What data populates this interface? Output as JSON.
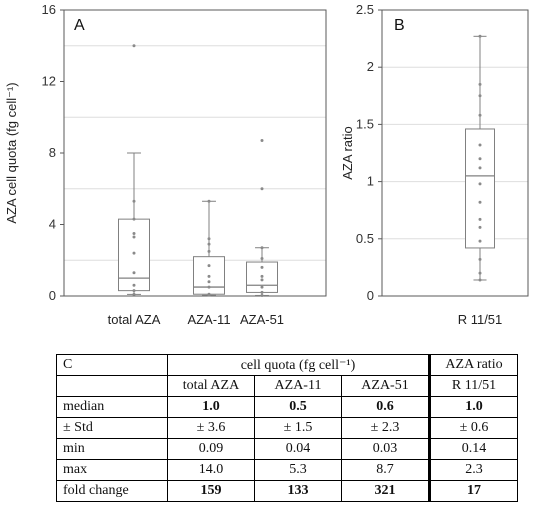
{
  "chart_data": [
    {
      "type": "box",
      "panel_label": "A",
      "ylabel": "AZA cell quota (fg cell⁻¹)",
      "ylim": [
        0,
        16
      ],
      "yticks": [
        0,
        4,
        8,
        12,
        16
      ],
      "gridlines": [
        2,
        6,
        10,
        14
      ],
      "categories": [
        "total AZA",
        "AZA-11",
        "AZA-51"
      ],
      "boxes": [
        {
          "name": "total AZA",
          "whisker_low": 0.09,
          "q1": 0.3,
          "median": 1.0,
          "q3": 4.3,
          "whisker_high": 8.0,
          "points": [
            14.0,
            5.3,
            4.3,
            3.5,
            3.3,
            2.4,
            1.3,
            0.6,
            0.3,
            0.09
          ]
        },
        {
          "name": "AZA-11",
          "whisker_low": 0.04,
          "q1": 0.1,
          "median": 0.5,
          "q3": 2.2,
          "whisker_high": 5.3,
          "points": [
            5.3,
            3.2,
            2.9,
            2.5,
            1.7,
            1.1,
            0.8,
            0.5,
            0.1,
            0.04
          ]
        },
        {
          "name": "AZA-51",
          "whisker_low": 0.03,
          "q1": 0.2,
          "median": 0.6,
          "q3": 1.9,
          "whisker_high": 2.7,
          "points": [
            8.7,
            6.0,
            2.7,
            2.1,
            1.6,
            1.1,
            0.9,
            0.5,
            0.2,
            0.03
          ]
        }
      ]
    },
    {
      "type": "box",
      "panel_label": "B",
      "ylabel": "AZA ratio",
      "ylim": [
        0,
        2.5
      ],
      "yticks": [
        0,
        0.5,
        1,
        1.5,
        2,
        2.5
      ],
      "tick_labels": [
        "0",
        "0.5",
        "1",
        "1.5",
        "2",
        "2.5"
      ],
      "gridlines": [
        0.5,
        1,
        1.5,
        2
      ],
      "categories": [
        "R 11/51"
      ],
      "boxes": [
        {
          "name": "R 11/51",
          "whisker_low": 0.14,
          "q1": 0.42,
          "median": 1.05,
          "q3": 1.46,
          "whisker_high": 2.27,
          "points": [
            2.27,
            1.85,
            1.75,
            1.58,
            1.32,
            1.2,
            1.12,
            0.98,
            0.82,
            0.67,
            0.6,
            0.48,
            0.32,
            0.2,
            0.14
          ]
        }
      ]
    }
  ],
  "colors": {
    "box": "#808080",
    "point": "#8a8a8a",
    "grid": "#dedede",
    "frame": "#5a5a5a"
  },
  "table": {
    "label": "C",
    "group_header": "cell quota (fg cell⁻¹)",
    "ratio_header": "AZA ratio",
    "columns": [
      "total AZA",
      "AZA-11",
      "AZA-51",
      "R 11/51"
    ],
    "rows": [
      {
        "label": "median",
        "values": [
          "1.0",
          "0.5",
          "0.6",
          "1.0"
        ],
        "bold": true
      },
      {
        "label": "± Std",
        "values": [
          "± 3.6",
          "± 1.5",
          "± 2.3",
          "± 0.6"
        ],
        "bold": false
      },
      {
        "label": "min",
        "values": [
          "0.09",
          "0.04",
          "0.03",
          "0.14"
        ],
        "bold": false
      },
      {
        "label": "max",
        "values": [
          "14.0",
          "5.3",
          "8.7",
          "2.3"
        ],
        "bold": false
      },
      {
        "label": "fold change",
        "values": [
          "159",
          "133",
          "321",
          "17"
        ],
        "bold": true
      }
    ]
  }
}
